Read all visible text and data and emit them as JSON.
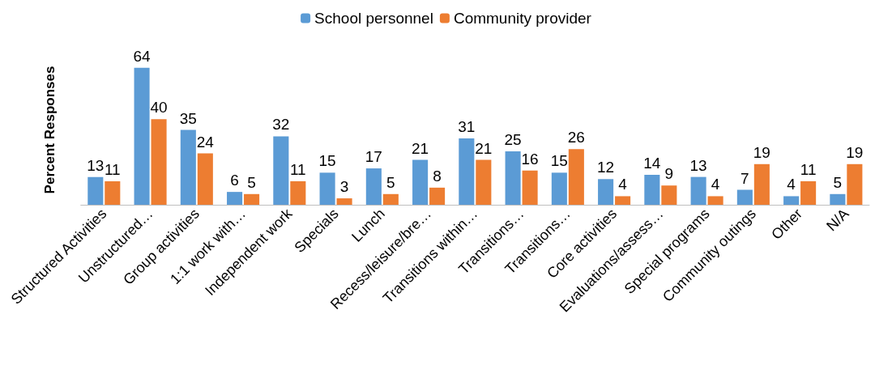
{
  "chart_data": {
    "type": "bar",
    "ylabel": "Percent Responses",
    "categories": [
      "Structured Activities",
      "Unstructured…",
      "Group activities",
      "1:1 work with…",
      "Independent work",
      "Specials",
      "Lunch",
      "Recess/leisure/bre…",
      "Transitions within…",
      "Transitions…",
      "Transitions…",
      "Core activities",
      "Evaluations/assess…",
      "Special programs",
      "Community outings",
      "Other",
      "N/A"
    ],
    "series": [
      {
        "name": "School personnel",
        "color": "#5b9bd5",
        "values": [
          13,
          64,
          35,
          6,
          32,
          15,
          17,
          21,
          31,
          25,
          15,
          12,
          14,
          13,
          7,
          4,
          5
        ]
      },
      {
        "name": "Community provider",
        "color": "#ed7d31",
        "values": [
          11,
          40,
          24,
          5,
          11,
          3,
          5,
          8,
          21,
          16,
          26,
          4,
          9,
          4,
          19,
          11,
          19
        ]
      }
    ],
    "data_labels": true,
    "legend": "top",
    "grid": false
  }
}
